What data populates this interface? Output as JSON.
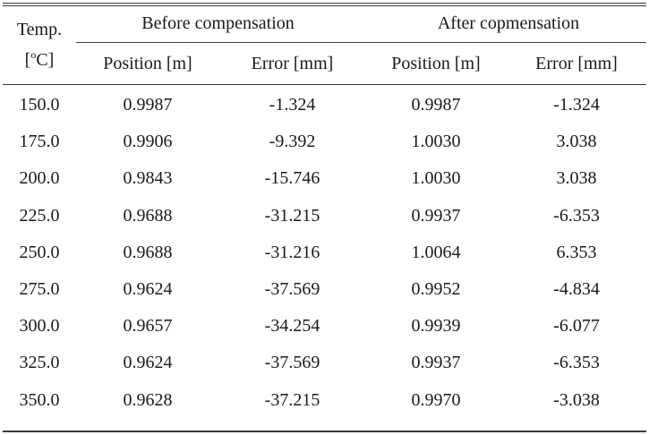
{
  "header": {
    "temp_line1": "Temp.",
    "temp_unit_open": "[",
    "temp_unit_sup": "o",
    "temp_unit_rest": "C]",
    "group_before": "Before  compensation",
    "group_after": "After  copmensation",
    "columns": [
      "Position  [m]",
      "Error  [mm]",
      "Position  [m]",
      "Error  [mm]"
    ]
  },
  "rows": [
    [
      "150.0",
      "0.9987",
      "-1.324",
      "0.9987",
      "-1.324"
    ],
    [
      "175.0",
      "0.9906",
      "-9.392",
      "1.0030",
      "3.038"
    ],
    [
      "200.0",
      "0.9843",
      "-15.746",
      "1.0030",
      "3.038"
    ],
    [
      "225.0",
      "0.9688",
      "-31.215",
      "0.9937",
      "-6.353"
    ],
    [
      "250.0",
      "0.9688",
      "-31.216",
      "1.0064",
      "6.353"
    ],
    [
      "275.0",
      "0.9624",
      "-37.569",
      "0.9952",
      "-4.834"
    ],
    [
      "300.0",
      "0.9657",
      "-34.254",
      "0.9939",
      "-6.077"
    ],
    [
      "325.0",
      "0.9624",
      "-37.569",
      "0.9937",
      "-6.353"
    ],
    [
      "350.0",
      "0.9628",
      "-37.215",
      "0.9970",
      "-3.038"
    ]
  ]
}
